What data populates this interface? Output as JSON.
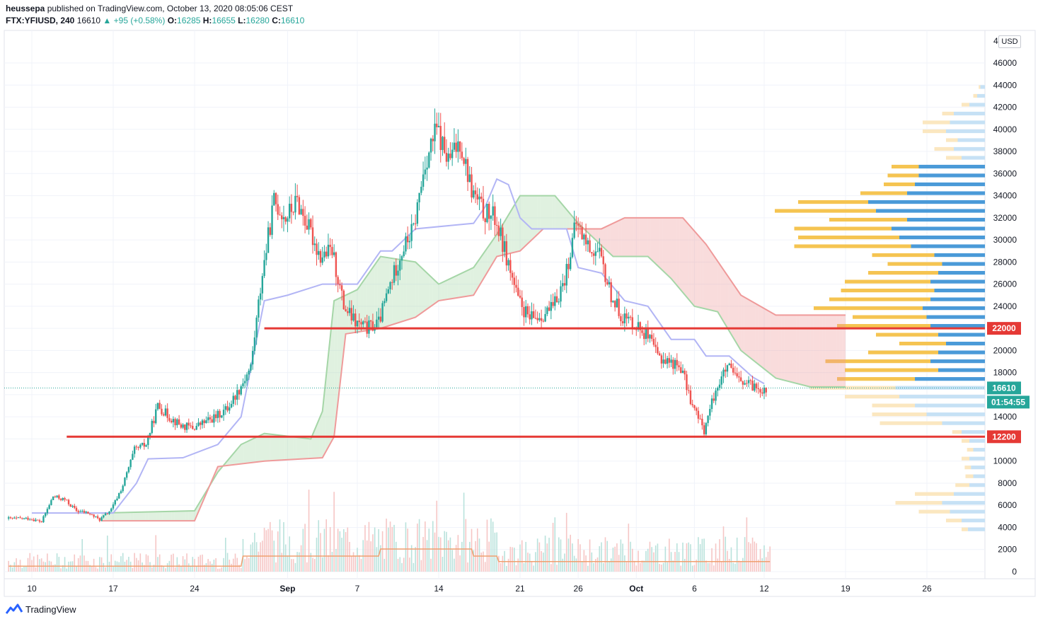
{
  "header": {
    "author": "heussepa",
    "published_text": "published on TradingView.com, October 13, 2020 08:05:06 CEST",
    "symbol": "FTX:YFIUSD, 240",
    "last": "16610",
    "change": "▲ +95 (+0.58%)",
    "o_label": "O:",
    "o_value": "16285",
    "h_label": "H:",
    "h_value": "16655",
    "l_label": "L:",
    "l_value": "16280",
    "c_label": "C:",
    "c_value": "16610"
  },
  "currency_badge": "USD",
  "top_tick": "4",
  "footer": {
    "brand": "TradingView"
  },
  "colors": {
    "up": "#26a69a",
    "down": "#ef5350",
    "red_line": "#e53935",
    "baseline": "#b2b5f5",
    "lead_a": "#a5d6a7",
    "lead_b": "#ef9a9a",
    "vp_up": "#4a9ad8",
    "vp_down": "#f5c451",
    "volume_ma": "#f0a070"
  },
  "price_labels": {
    "last_price": "16610",
    "countdown": "01:54:55",
    "level_high": "22000",
    "level_low": "12200"
  },
  "chart_data": {
    "type": "candlestick",
    "title": "",
    "ylim": [
      0,
      47500
    ],
    "y_ticks": [
      0,
      2000,
      4000,
      6000,
      8000,
      10000,
      12000,
      14000,
      16000,
      18000,
      20000,
      22000,
      24000,
      26000,
      28000,
      30000,
      32000,
      34000,
      36000,
      38000,
      40000,
      42000,
      44000,
      46000
    ],
    "y_tick_labels": [
      "0",
      "2000",
      "4000",
      "6000",
      "8000",
      "10000",
      "",
      "14000",
      "",
      "18000",
      "20000",
      "",
      "24000",
      "26000",
      "28000",
      "30000",
      "32000",
      "34000",
      "36000",
      "38000",
      "40000",
      "42000",
      "44000",
      "46000"
    ],
    "x_ticks": [
      {
        "day": 0,
        "label": "10",
        "bold": false
      },
      {
        "day": 7,
        "label": "17",
        "bold": false
      },
      {
        "day": 14,
        "label": "24",
        "bold": false
      },
      {
        "day": 22,
        "label": "Sep",
        "bold": true
      },
      {
        "day": 28,
        "label": "7",
        "bold": false
      },
      {
        "day": 35,
        "label": "14",
        "bold": false
      },
      {
        "day": 42,
        "label": "21",
        "bold": false
      },
      {
        "day": 47,
        "label": "26",
        "bold": false
      },
      {
        "day": 52,
        "label": "Oct",
        "bold": true
      },
      {
        "day": 57,
        "label": "6",
        "bold": false
      },
      {
        "day": 63,
        "label": "12",
        "bold": false
      },
      {
        "day": 70,
        "label": "19",
        "bold": false
      },
      {
        "day": 77,
        "label": "26",
        "bold": false
      }
    ],
    "x_range_days": [
      -2,
      82.5
    ],
    "x_note": "day 0 = Aug 10, 2020; 4-hour candles",
    "horizontal_levels": [
      {
        "price": 22000,
        "from_day": 20,
        "label": "22000"
      },
      {
        "price": 12200,
        "from_day": 3,
        "label": "12200"
      }
    ],
    "last_price": 16610,
    "price_path_daily": [
      [
        0,
        4800
      ],
      [
        1,
        4500
      ],
      [
        2,
        6800
      ],
      [
        3,
        6500
      ],
      [
        4,
        5500
      ],
      [
        5,
        5300
      ],
      [
        6,
        4700
      ],
      [
        7,
        5600
      ],
      [
        8,
        7800
      ],
      [
        9,
        11000
      ],
      [
        10,
        11500
      ],
      [
        11,
        15000
      ],
      [
        12,
        14000
      ],
      [
        13,
        13200
      ],
      [
        14,
        13000
      ],
      [
        15,
        13500
      ],
      [
        16,
        14000
      ],
      [
        17,
        14800
      ],
      [
        18,
        16500
      ],
      [
        19,
        18500
      ],
      [
        20,
        27000
      ],
      [
        21,
        33500
      ],
      [
        22,
        32000
      ],
      [
        23,
        33500
      ],
      [
        24,
        31000
      ],
      [
        25,
        28500
      ],
      [
        26,
        29000
      ],
      [
        27,
        24000
      ],
      [
        28,
        22500
      ],
      [
        29,
        22000
      ],
      [
        30,
        22500
      ],
      [
        31,
        26000
      ],
      [
        32,
        29000
      ],
      [
        33,
        31000
      ],
      [
        34,
        37000
      ],
      [
        35,
        40000
      ],
      [
        36,
        37000
      ],
      [
        37,
        39000
      ],
      [
        38,
        34500
      ],
      [
        39,
        32500
      ],
      [
        40,
        32000
      ],
      [
        41,
        28500
      ],
      [
        42,
        24500
      ],
      [
        43,
        22800
      ],
      [
        44,
        23200
      ],
      [
        45,
        23800
      ],
      [
        46,
        26500
      ],
      [
        47,
        31500
      ],
      [
        48,
        29500
      ],
      [
        49,
        28500
      ],
      [
        50,
        25000
      ],
      [
        51,
        23000
      ],
      [
        52,
        22500
      ],
      [
        53,
        21500
      ],
      [
        54,
        19500
      ],
      [
        55,
        19000
      ],
      [
        56,
        18500
      ],
      [
        57,
        15000
      ],
      [
        58,
        12800
      ],
      [
        59,
        16500
      ],
      [
        60,
        18500
      ],
      [
        61,
        17200
      ],
      [
        62,
        16800
      ],
      [
        63,
        16600
      ]
    ],
    "baseline_path": [
      [
        0,
        5300
      ],
      [
        7,
        5300
      ],
      [
        9,
        8000
      ],
      [
        10,
        10200
      ],
      [
        13,
        10300
      ],
      [
        16,
        11500
      ],
      [
        18,
        14000
      ],
      [
        20,
        24500
      ],
      [
        22,
        25000
      ],
      [
        25,
        26000
      ],
      [
        28,
        26000
      ],
      [
        30,
        29000
      ],
      [
        31,
        29000
      ],
      [
        32,
        30000
      ],
      [
        33,
        31000
      ],
      [
        38,
        31500
      ],
      [
        39,
        33000
      ],
      [
        40,
        35500
      ],
      [
        41,
        35000
      ],
      [
        42,
        32000
      ],
      [
        43,
        31000
      ],
      [
        46,
        31000
      ],
      [
        47,
        27500
      ],
      [
        49,
        27000
      ],
      [
        51,
        24500
      ],
      [
        53,
        24000
      ],
      [
        55,
        21000
      ],
      [
        57,
        21000
      ],
      [
        58,
        19500
      ],
      [
        60,
        19500
      ],
      [
        62,
        17600
      ],
      [
        63,
        17000
      ]
    ],
    "lagging_span_path": [
      [
        -2,
        4700
      ],
      [
        0,
        4500
      ],
      [
        4,
        5300
      ],
      [
        8,
        7000
      ],
      [
        10,
        10000
      ],
      [
        15,
        13000
      ],
      [
        19,
        27000
      ],
      [
        22,
        32500
      ],
      [
        25,
        25000
      ],
      [
        30,
        22000
      ],
      [
        34,
        30000
      ],
      [
        38,
        34500
      ],
      [
        42,
        23500
      ],
      [
        45,
        26000
      ],
      [
        47,
        30500
      ],
      [
        49,
        25000
      ],
      [
        52,
        22000
      ],
      [
        56,
        15000
      ],
      [
        59,
        17000
      ],
      [
        61,
        16610
      ]
    ],
    "cloud_leading_a": [
      [
        6,
        5300
      ],
      [
        14,
        5500
      ],
      [
        16,
        9000
      ],
      [
        18,
        11500
      ],
      [
        20,
        12500
      ],
      [
        24,
        12000
      ],
      [
        25,
        14500
      ],
      [
        26,
        24500
      ],
      [
        28,
        25500
      ],
      [
        30,
        28500
      ],
      [
        33,
        28000
      ],
      [
        35,
        26000
      ],
      [
        38,
        27500
      ],
      [
        40,
        30500
      ],
      [
        42,
        34000
      ],
      [
        45,
        34000
      ],
      [
        47,
        31500
      ],
      [
        50,
        28500
      ],
      [
        53,
        28500
      ],
      [
        55,
        26500
      ],
      [
        57,
        24000
      ],
      [
        59,
        23500
      ],
      [
        61,
        20000
      ],
      [
        64,
        17500
      ],
      [
        67,
        16700
      ],
      [
        70,
        16700
      ]
    ],
    "cloud_leading_b": [
      [
        6,
        4600
      ],
      [
        14,
        4600
      ],
      [
        16,
        9500
      ],
      [
        20,
        10000
      ],
      [
        25,
        10300
      ],
      [
        26,
        12200
      ],
      [
        27,
        21500
      ],
      [
        30,
        22000
      ],
      [
        33,
        23000
      ],
      [
        35,
        24500
      ],
      [
        38,
        25000
      ],
      [
        40,
        28500
      ],
      [
        42,
        29000
      ],
      [
        44,
        31000
      ],
      [
        49,
        31000
      ],
      [
        51,
        32000
      ],
      [
        56,
        32000
      ],
      [
        58,
        29600
      ],
      [
        61,
        25000
      ],
      [
        64,
        23200
      ],
      [
        70,
        23200
      ]
    ],
    "volume_profile_note": "horizontal volume-by-price histogram on right; blue = up volume, yellow = down volume",
    "volume_profile": [
      {
        "price": 3800,
        "up": 22,
        "down": 8
      },
      {
        "price": 4600,
        "up": 30,
        "down": 20
      },
      {
        "price": 5400,
        "up": 45,
        "down": 40
      },
      {
        "price": 6200,
        "up": 55,
        "down": 60
      },
      {
        "price": 7000,
        "up": 40,
        "down": 50
      },
      {
        "price": 7800,
        "up": 20,
        "down": 18
      },
      {
        "price": 8600,
        "up": 15,
        "down": 10
      },
      {
        "price": 9400,
        "up": 18,
        "down": 8
      },
      {
        "price": 10200,
        "up": 20,
        "down": 10
      },
      {
        "price": 11000,
        "up": 15,
        "down": 8
      },
      {
        "price": 11800,
        "up": 20,
        "down": 10
      },
      {
        "price": 12600,
        "up": 30,
        "down": 12
      },
      {
        "price": 13400,
        "up": 55,
        "down": 80
      },
      {
        "price": 14200,
        "up": 75,
        "down": 70
      },
      {
        "price": 15000,
        "up": 90,
        "down": 55
      },
      {
        "price": 15800,
        "up": 110,
        "down": 70
      },
      {
        "price": 16600,
        "up": 115,
        "down": 110
      },
      {
        "price": 17400,
        "up": 90,
        "down": 100
      },
      {
        "price": 18200,
        "up": 60,
        "down": 120
      },
      {
        "price": 19000,
        "up": 70,
        "down": 135
      },
      {
        "price": 19800,
        "up": 60,
        "down": 90
      },
      {
        "price": 20600,
        "up": 50,
        "down": 60
      },
      {
        "price": 21400,
        "up": 60,
        "down": 80
      },
      {
        "price": 22200,
        "up": 70,
        "down": 120
      },
      {
        "price": 23000,
        "up": 75,
        "down": 95
      },
      {
        "price": 23800,
        "up": 80,
        "down": 140
      },
      {
        "price": 24600,
        "up": 70,
        "down": 130
      },
      {
        "price": 25400,
        "up": 65,
        "down": 120
      },
      {
        "price": 26200,
        "up": 70,
        "down": 110
      },
      {
        "price": 27000,
        "up": 60,
        "down": 90
      },
      {
        "price": 27800,
        "up": 55,
        "down": 70
      },
      {
        "price": 28600,
        "up": 65,
        "down": 80
      },
      {
        "price": 29400,
        "up": 95,
        "down": 150
      },
      {
        "price": 30200,
        "up": 110,
        "down": 130
      },
      {
        "price": 31000,
        "up": 120,
        "down": 125
      },
      {
        "price": 31800,
        "up": 100,
        "down": 100
      },
      {
        "price": 32600,
        "up": 140,
        "down": 130
      },
      {
        "price": 33400,
        "up": 150,
        "down": 90
      },
      {
        "price": 34200,
        "up": 100,
        "down": 60
      },
      {
        "price": 35000,
        "up": 90,
        "down": 40
      },
      {
        "price": 35800,
        "up": 85,
        "down": 40
      },
      {
        "price": 36600,
        "up": 85,
        "down": 35
      },
      {
        "price": 37400,
        "up": 30,
        "down": 20
      },
      {
        "price": 38200,
        "up": 40,
        "down": 25
      },
      {
        "price": 39000,
        "up": 35,
        "down": 15
      },
      {
        "price": 39800,
        "up": 50,
        "down": 30
      },
      {
        "price": 40600,
        "up": 45,
        "down": 35
      },
      {
        "price": 41400,
        "up": 40,
        "down": 15
      },
      {
        "price": 42200,
        "up": 20,
        "down": 10
      },
      {
        "price": 43000,
        "up": 10,
        "down": 5
      },
      {
        "price": 43800,
        "up": 6,
        "down": 2
      }
    ]
  }
}
